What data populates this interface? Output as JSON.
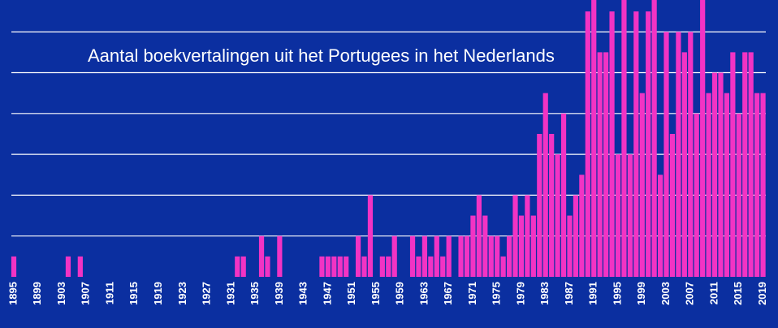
{
  "chart_data": {
    "type": "bar",
    "title": "Aantal boekvertalingen uit het Portugees in het Nederlands",
    "categories": [
      "1895",
      null,
      null,
      null,
      "1899",
      null,
      null,
      null,
      "1903",
      null,
      null,
      null,
      "1907",
      null,
      null,
      null,
      "1911",
      null,
      null,
      null,
      "1915",
      null,
      null,
      null,
      "1919",
      null,
      null,
      null,
      "1923",
      null,
      null,
      null,
      "1927",
      null,
      null,
      null,
      "1931",
      null,
      null,
      null,
      "1935",
      null,
      null,
      null,
      "1939",
      null,
      null,
      null,
      "1943",
      null,
      null,
      null,
      "1947",
      null,
      null,
      null,
      "1951",
      null,
      null,
      null,
      "1955",
      null,
      null,
      null,
      "1959",
      null,
      null,
      null,
      "1963",
      null,
      null,
      null,
      "1967",
      null,
      null,
      null,
      "1971",
      null,
      null,
      null,
      "1975",
      null,
      null,
      null,
      "1979",
      null,
      null,
      null,
      "1983",
      null,
      null,
      null,
      "1987",
      null,
      null,
      null,
      "1991",
      null,
      null,
      null,
      "1995",
      null,
      null,
      null,
      "1999",
      null,
      null,
      null,
      "2003",
      null,
      null,
      null,
      "2007",
      null,
      null,
      null,
      "2011",
      null,
      null,
      null,
      "2015",
      null,
      null,
      null,
      "2019"
    ],
    "values": [
      1,
      0,
      0,
      0,
      0,
      0,
      0,
      0,
      0,
      1,
      0,
      1,
      0,
      0,
      0,
      0,
      0,
      0,
      0,
      0,
      0,
      0,
      0,
      0,
      0,
      0,
      0,
      0,
      0,
      0,
      0,
      0,
      0,
      0,
      0,
      0,
      0,
      1,
      1,
      0,
      0,
      2,
      1,
      0,
      2,
      0,
      0,
      0,
      0,
      0,
      0,
      1,
      1,
      1,
      1,
      1,
      0,
      2,
      1,
      4,
      0,
      1,
      1,
      2,
      0,
      0,
      2,
      1,
      2,
      1,
      2,
      1,
      2,
      0,
      2,
      2,
      3,
      4,
      3,
      2,
      2,
      1,
      2,
      4,
      3,
      4,
      3,
      7,
      9,
      7,
      6,
      8,
      3,
      4,
      5,
      13,
      14,
      11,
      11,
      13,
      6,
      14,
      6,
      13,
      9,
      13,
      14,
      5,
      12,
      7,
      12,
      11,
      12,
      8,
      14,
      9,
      10,
      10,
      9,
      11,
      8,
      11,
      11,
      9,
      9
    ],
    "color": "#f233c4",
    "ylim": [
      0,
      13.56
    ],
    "yticks": [
      2,
      4,
      6,
      8,
      10,
      12
    ],
    "grid": true
  }
}
